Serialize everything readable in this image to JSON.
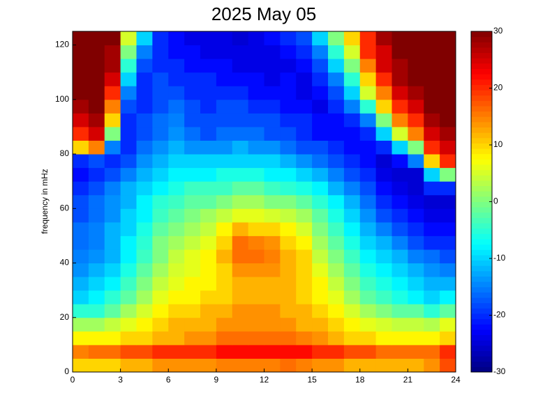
{
  "chart_data": {
    "type": "heatmap",
    "title": "2025 May 05",
    "y_label": "frequency in mHz",
    "colormap": "jet",
    "xbins": [
      0,
      1,
      2,
      3,
      4,
      5,
      6,
      7,
      8,
      9,
      10,
      11,
      12,
      13,
      14,
      15,
      16,
      17,
      18,
      19,
      20,
      21,
      22,
      23,
      24
    ],
    "ybins": [
      0,
      5,
      10,
      15,
      20,
      25,
      30,
      35,
      40,
      45,
      50,
      55,
      60,
      65,
      70,
      75,
      80,
      85,
      90,
      95,
      100,
      105,
      110,
      115,
      120,
      125
    ],
    "xlim": [
      0,
      24
    ],
    "xticks": [
      0,
      3,
      6,
      9,
      12,
      15,
      18,
      21,
      24
    ],
    "ylim": [
      0,
      125
    ],
    "yticks": [
      0,
      20,
      40,
      60,
      80,
      100,
      120
    ],
    "zlim": [
      -30,
      30
    ],
    "zticks": [
      -30,
      -20,
      -10,
      0,
      10,
      20,
      30
    ],
    "values": [
      [
        10,
        10,
        10,
        12,
        12,
        14,
        14,
        14,
        14,
        15,
        15,
        15,
        15,
        16,
        15,
        14,
        14,
        12,
        12,
        12,
        12,
        12,
        14,
        18
      ],
      [
        15,
        16,
        16,
        18,
        18,
        20,
        20,
        20,
        20,
        22,
        22,
        22,
        22,
        22,
        22,
        20,
        20,
        18,
        18,
        16,
        16,
        16,
        16,
        20
      ],
      [
        8,
        8,
        8,
        10,
        10,
        12,
        12,
        14,
        14,
        16,
        16,
        16,
        16,
        16,
        15,
        14,
        12,
        10,
        10,
        8,
        8,
        8,
        8,
        10
      ],
      [
        2,
        2,
        4,
        6,
        8,
        10,
        12,
        12,
        12,
        14,
        14,
        14,
        14,
        14,
        12,
        12,
        10,
        8,
        6,
        5,
        4,
        4,
        3,
        6
      ],
      [
        -5,
        -5,
        -2,
        2,
        5,
        8,
        10,
        10,
        12,
        12,
        14,
        14,
        14,
        12,
        12,
        10,
        8,
        5,
        2,
        0,
        -2,
        -2,
        -5,
        -2
      ],
      [
        -10,
        -8,
        -5,
        -2,
        2,
        6,
        8,
        8,
        10,
        10,
        12,
        12,
        12,
        12,
        10,
        8,
        6,
        2,
        -2,
        -4,
        -6,
        -8,
        -10,
        -8
      ],
      [
        -12,
        -10,
        -8,
        -4,
        0,
        4,
        6,
        8,
        8,
        10,
        12,
        12,
        12,
        12,
        10,
        8,
        4,
        0,
        -4,
        -6,
        -8,
        -10,
        -12,
        -12
      ],
      [
        -14,
        -12,
        -10,
        -6,
        -2,
        2,
        5,
        6,
        8,
        10,
        14,
        14,
        14,
        12,
        10,
        6,
        2,
        -2,
        -6,
        -8,
        -10,
        -12,
        -14,
        -15
      ],
      [
        -15,
        -14,
        -12,
        -8,
        -4,
        0,
        4,
        6,
        8,
        12,
        16,
        16,
        15,
        12,
        10,
        4,
        0,
        -4,
        -8,
        -10,
        -12,
        -15,
        -16,
        -18
      ],
      [
        -16,
        -15,
        -12,
        -8,
        -5,
        0,
        2,
        4,
        6,
        10,
        16,
        15,
        14,
        10,
        8,
        2,
        -2,
        -6,
        -10,
        -12,
        -15,
        -18,
        -20,
        -20
      ],
      [
        -16,
        -15,
        -12,
        -10,
        -6,
        -2,
        0,
        2,
        4,
        8,
        12,
        10,
        10,
        8,
        5,
        0,
        -4,
        -8,
        -12,
        -15,
        -18,
        -20,
        -22,
        -22
      ],
      [
        -18,
        -16,
        -14,
        -10,
        -8,
        -4,
        -2,
        0,
        2,
        4,
        6,
        6,
        5,
        4,
        2,
        -2,
        -6,
        -10,
        -14,
        -18,
        -20,
        -22,
        -24,
        -24
      ],
      [
        -18,
        -16,
        -14,
        -12,
        -8,
        -5,
        -4,
        -2,
        -2,
        0,
        2,
        2,
        0,
        0,
        -2,
        -5,
        -8,
        -12,
        -16,
        -20,
        -22,
        -24,
        -25,
        -25
      ],
      [
        -20,
        -18,
        -15,
        -12,
        -10,
        -8,
        -6,
        -4,
        -4,
        -4,
        -2,
        -2,
        -4,
        -5,
        -6,
        -8,
        -12,
        -15,
        -18,
        -22,
        -24,
        -25,
        -20,
        -20
      ],
      [
        -22,
        -20,
        -18,
        -15,
        -12,
        -10,
        -8,
        -8,
        -8,
        -6,
        -6,
        -6,
        -8,
        -8,
        -10,
        -12,
        -15,
        -18,
        -20,
        -24,
        -25,
        -25,
        -10,
        0
      ],
      [
        -20,
        -18,
        -20,
        -18,
        -14,
        -12,
        -10,
        -10,
        -10,
        -10,
        -10,
        -10,
        -10,
        -12,
        -14,
        -16,
        -18,
        -20,
        -22,
        -25,
        -22,
        -15,
        10,
        20
      ],
      [
        10,
        15,
        -15,
        -20,
        -16,
        -14,
        -12,
        -14,
        -14,
        -14,
        -12,
        -14,
        -14,
        -16,
        -18,
        -18,
        -20,
        -22,
        -22,
        -20,
        -10,
        0,
        20,
        25
      ],
      [
        20,
        25,
        0,
        -20,
        -18,
        -16,
        -14,
        -16,
        -18,
        -16,
        -16,
        -16,
        -18,
        -18,
        -20,
        -22,
        -22,
        -22,
        -20,
        -10,
        5,
        15,
        25,
        28
      ],
      [
        25,
        28,
        10,
        -20,
        -18,
        -16,
        -15,
        -18,
        -18,
        -18,
        -18,
        -18,
        -18,
        -20,
        -20,
        -22,
        -22,
        -20,
        -15,
        0,
        15,
        20,
        28,
        30
      ],
      [
        28,
        30,
        15,
        -18,
        -20,
        -18,
        -16,
        -18,
        -20,
        -18,
        -18,
        -20,
        -20,
        -22,
        -22,
        -24,
        -20,
        -15,
        -5,
        10,
        20,
        25,
        30,
        30
      ],
      [
        30,
        30,
        20,
        -15,
        -20,
        -18,
        -18,
        -20,
        -20,
        -20,
        -20,
        -22,
        -22,
        -22,
        -24,
        -22,
        -18,
        -10,
        5,
        15,
        25,
        28,
        30,
        30
      ],
      [
        30,
        30,
        25,
        -10,
        -20,
        -18,
        -20,
        -20,
        -20,
        -22,
        -22,
        -22,
        -24,
        -22,
        -24,
        -20,
        -15,
        -5,
        10,
        20,
        28,
        30,
        30,
        30
      ],
      [
        30,
        30,
        28,
        -5,
        -18,
        -20,
        -20,
        -22,
        -22,
        -22,
        -24,
        -24,
        -24,
        -24,
        -22,
        -18,
        -10,
        0,
        15,
        25,
        28,
        30,
        30,
        30
      ],
      [
        30,
        30,
        28,
        0,
        -15,
        -20,
        -22,
        -22,
        -24,
        -24,
        -24,
        -24,
        -24,
        -22,
        -20,
        -15,
        -5,
        5,
        20,
        25,
        30,
        30,
        30,
        30
      ],
      [
        30,
        30,
        30,
        5,
        -10,
        -20,
        -22,
        -24,
        -24,
        -24,
        -25,
        -24,
        -22,
        -20,
        -18,
        -10,
        0,
        10,
        20,
        28,
        30,
        30,
        30,
        30
      ]
    ]
  }
}
